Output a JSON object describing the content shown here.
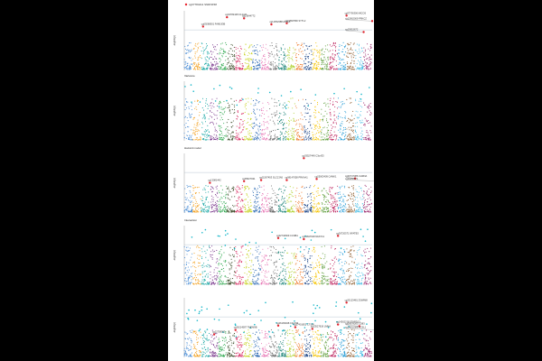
{
  "chart_data": [
    {
      "type": "scatter",
      "title": "",
      "legend": "cg07784411 SNRNP48",
      "xlabel": "",
      "ylabel": "-log10(p)",
      "significance_line": true,
      "highlights": [
        {
          "x": 5,
          "y": 0.97,
          "label": "cg02782448 C12orf1"
        },
        {
          "x": 2.2,
          "y": 0.8,
          "label": "cg09268501 FAM193B"
        },
        {
          "x": 7,
          "y": 0.95,
          "label": "cg23644772"
        },
        {
          "x": 10.2,
          "y": 0.84,
          "label": "cg14052388 ACSL1"
        },
        {
          "x": 12,
          "y": 0.86,
          "label": "cg01897890 SYTL2"
        },
        {
          "x": 19,
          "y": 1.0,
          "label": "cg07706306 MICOS"
        },
        {
          "x": 22,
          "y": 0.9,
          "label": "cg12962009 PRKCZ"
        },
        {
          "x": 21,
          "y": 0.7,
          "label": "cg15915672"
        }
      ]
    },
    {
      "type": "scatter",
      "title": "Variance",
      "xlabel": "",
      "ylabel": "-log10(p)",
      "significance_line": false,
      "highlights": []
    },
    {
      "type": "scatter",
      "title": "Hazard model",
      "xlabel": "",
      "ylabel": "-log10(p)",
      "significance_line": true,
      "highlights": [
        {
          "x": 14,
          "y": 1.0,
          "label": "cg03527449 C3orf33"
        },
        {
          "x": 3,
          "y": 0.55,
          "label": "cg13081442"
        },
        {
          "x": 7,
          "y": 0.58,
          "label": "cg05627931"
        },
        {
          "x": 9,
          "y": 0.6,
          "label": "cg11567453 SLC13A5"
        },
        {
          "x": 12,
          "y": 0.6,
          "label": "cg08147658 PRKAA1"
        },
        {
          "x": 15.5,
          "y": 0.62,
          "label": "cg25003409 CAMK1"
        },
        {
          "x": 20,
          "y": 0.63,
          "label": "cg00747386 CHRNA"
        },
        {
          "x": 23,
          "y": 0.58,
          "label": "cg09456571"
        }
      ]
    },
    {
      "type": "scatter",
      "title": "Interaction",
      "xlabel": "",
      "ylabel": "-log10(p)",
      "significance_line": true,
      "highlights": [
        {
          "x": 11,
          "y": 0.86,
          "label": "cg02740669 CCNB1"
        },
        {
          "x": 14,
          "y": 0.84,
          "label": "cg13847648 NFATC1"
        },
        {
          "x": 18,
          "y": 0.9,
          "label": "cg26720571 NFATB3"
        }
      ]
    },
    {
      "type": "scatter",
      "title": "",
      "legend": "",
      "xlabel": "",
      "ylabel": "-log10(p)",
      "significance_line": true,
      "highlights": [
        {
          "x": 19,
          "y": 1.0,
          "label": "cg20123481 ZSWIM8"
        },
        {
          "x": 11,
          "y": 0.58,
          "label": "cg06183948 C3orf33"
        },
        {
          "x": 6,
          "y": 0.5,
          "label": "cg26214587 TMEM9B"
        },
        {
          "x": 3.5,
          "y": 0.42,
          "label": "cg22758003"
        },
        {
          "x": 13,
          "y": 0.55,
          "label": "cg27401832 CTSW"
        },
        {
          "x": 15,
          "y": 0.52,
          "label": "cg13527618 LMNA"
        },
        {
          "x": 18,
          "y": 0.6,
          "label": "cg14262218 STARD13"
        },
        {
          "x": 20.5,
          "y": 0.57,
          "label": "cg09578263 CD83"
        },
        {
          "x": 23,
          "y": 0.5,
          "label": "cg14052388 ACSL1"
        }
      ]
    }
  ],
  "colors": {
    "chromosomes": [
      "#4d8fd6",
      "#f3a428",
      "#1aa7a4",
      "#7b3a8d",
      "#2fa84f",
      "#3d4d2a",
      "#d7265f",
      "#c6d21e",
      "#2e6bb4",
      "#e879b6",
      "#6f6f6f",
      "#0c7b6e",
      "#b2d235",
      "#ee7d2f",
      "#234a8a",
      "#f5c400",
      "#5e9d3c",
      "#bb1e5a",
      "#2a9dd6",
      "#8b5a2b",
      "#51c0e6",
      "#9b2b6f"
    ],
    "highlight": "#e8222c",
    "significant": "#17b7c9",
    "line": "#a6b6c8"
  }
}
